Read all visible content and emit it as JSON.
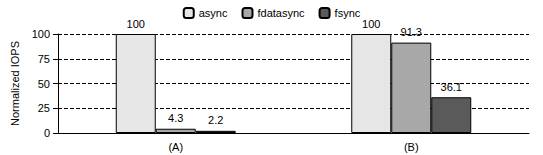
{
  "chart_data": {
    "type": "bar",
    "categories": [
      "(A)",
      "(B)"
    ],
    "series": [
      {
        "name": "async",
        "color": "#e6e6e6",
        "values": [
          100,
          100
        ]
      },
      {
        "name": "fdatasync",
        "color": "#a8a8a8",
        "values": [
          4.3,
          91.3
        ]
      },
      {
        "name": "fsync",
        "color": "#5a5a5a",
        "values": [
          2.2,
          36.1
        ]
      }
    ],
    "y_label": "Normalized IOPS",
    "ylim": [
      0,
      100
    ],
    "yticks": [
      0,
      25,
      50,
      75,
      100
    ],
    "grid": true,
    "legend": "top",
    "data_labels": true
  }
}
